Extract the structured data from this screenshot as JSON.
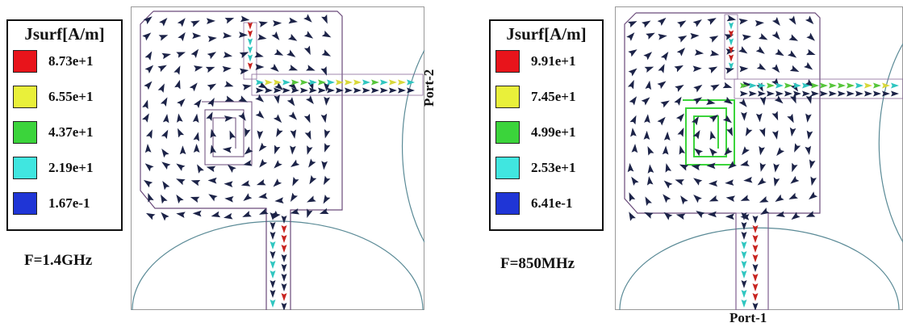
{
  "left_panel": {
    "legend": {
      "title": "Jsurf[A/m]",
      "items": [
        {
          "label": "8.73e+1",
          "color": "#e8141b"
        },
        {
          "label": "6.55e+1",
          "color": "#e9f03a"
        },
        {
          "label": "4.37e+1",
          "color": "#3bd43b"
        },
        {
          "label": "2.19e+1",
          "color": "#40e6e0"
        },
        {
          "label": "1.67e-1",
          "color": "#1f35d6"
        }
      ]
    },
    "frequency_label": "F=1.4GHz",
    "port_label": "Port-2"
  },
  "right_panel": {
    "legend": {
      "title": "Jsurf[A/m]",
      "items": [
        {
          "label": "9.91e+1",
          "color": "#e8141b"
        },
        {
          "label": "7.45e+1",
          "color": "#e9f03a"
        },
        {
          "label": "4.99e+1",
          "color": "#3bd43b"
        },
        {
          "label": "2.53e+1",
          "color": "#40e6e0"
        },
        {
          "label": "6.41e-1",
          "color": "#1f35d6"
        }
      ]
    },
    "frequency_label": "F=850MHz",
    "port_label": "Port-1"
  },
  "colors": {
    "arrow_primary": "#1c2348",
    "arrow_cyan": "#2fc6c0",
    "arrow_green": "#56c63a",
    "arrow_yellow": "#d8d83a",
    "arrow_red": "#c8231f",
    "outline": "#6a4a7a",
    "circle": "#5a8a96"
  }
}
